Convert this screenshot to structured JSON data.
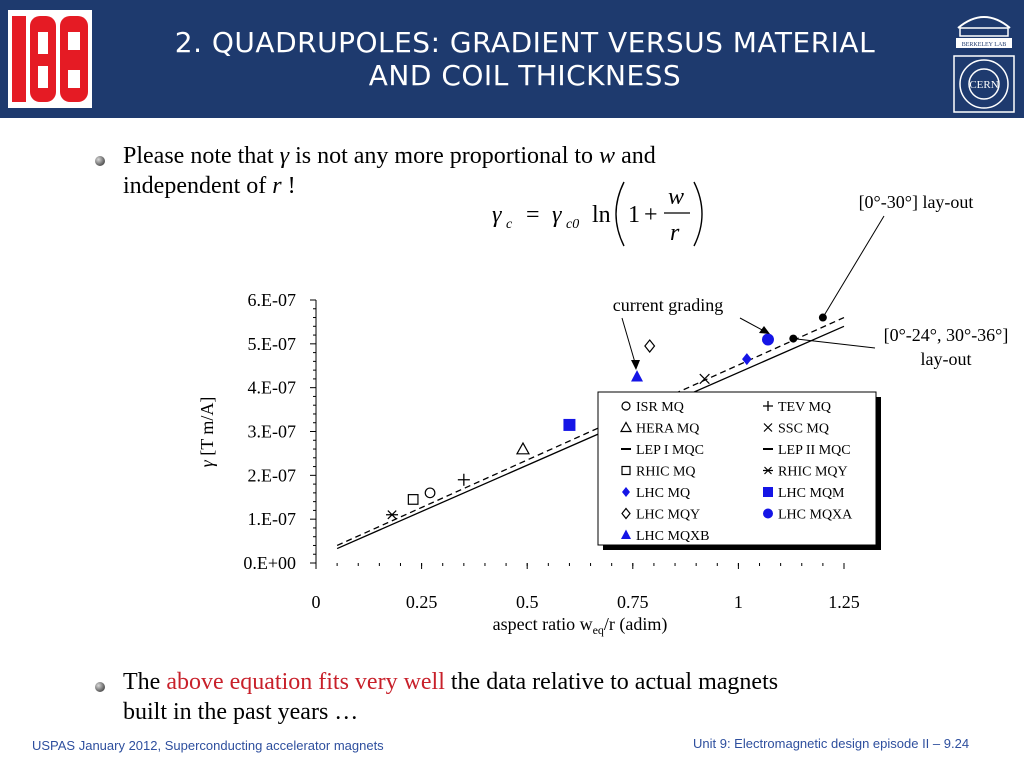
{
  "header": {
    "title_line1": "2. Quadrupoles: gradient versus material",
    "title_line2": "and coil thickness",
    "logo_left_text": "USPAS",
    "logo_right_top_text": "BERKELEY LAB",
    "logo_right_bottom_text": "CERN"
  },
  "bullets": [
    {
      "pre": "Please note that ",
      "sym1": "γ",
      "mid1": " is not any more proportional to ",
      "sym2": "w",
      "post1": " and",
      "line2": "independent of ",
      "sym3": "r",
      "post2": " !"
    },
    {
      "pre": "The ",
      "highlight": "above equation fits very well",
      "post": " the data relative to actual magnets",
      "line2": "built in the past years …"
    }
  ],
  "equation": {
    "lhs": "γ",
    "lhs_sub": "c",
    "eq": "=",
    "rhs": "γ",
    "rhs_sub": "c0",
    "ln": "ln",
    "one": "1",
    "plus": "+",
    "num": "w",
    "den": "r"
  },
  "chart_data": {
    "type": "scatter",
    "xlabel_main": "aspect ratio w",
    "xlabel_sub": "eq",
    "xlabel_tail": "/r (adim)",
    "ylabel_sym": "γ",
    "ylabel_tail": " [T m/A]",
    "xlim": [
      0,
      1.25
    ],
    "ylim": [
      0,
      6e-07
    ],
    "x_ticks": [
      "0",
      "0.25",
      "0.5",
      "0.75",
      "1",
      "1.25"
    ],
    "y_ticks": [
      "0.E+00",
      "1.E-07",
      "2.E-07",
      "3.E-07",
      "4.E-07",
      "5.E-07",
      "6.E-07"
    ],
    "series": [
      {
        "name": "ISR MQ",
        "marker": "circle-open",
        "x": [
          0.27
        ],
        "y": [
          1.6e-07
        ]
      },
      {
        "name": "TEV MQ",
        "marker": "plus",
        "x": [
          0.35
        ],
        "y": [
          1.9e-07
        ]
      },
      {
        "name": "HERA MQ",
        "marker": "triangle-open",
        "x": [
          0.49
        ],
        "y": [
          2.6e-07
        ]
      },
      {
        "name": "SSC MQ",
        "marker": "cross",
        "x": [
          0.92
        ],
        "y": [
          4.2e-07
        ]
      },
      {
        "name": "LEP I MQC",
        "marker": "dash",
        "x": [],
        "y": []
      },
      {
        "name": "LEP II MQC",
        "marker": "dash",
        "x": [],
        "y": []
      },
      {
        "name": "RHIC MQ",
        "marker": "square-open",
        "x": [
          0.23
        ],
        "y": [
          1.45e-07
        ]
      },
      {
        "name": "RHIC MQY",
        "marker": "star",
        "x": [
          0.18
        ],
        "y": [
          1.1e-07
        ]
      },
      {
        "name": "LHC MQ",
        "marker": "diamond-filled",
        "x": [
          1.02
        ],
        "y": [
          4.65e-07
        ]
      },
      {
        "name": "LHC MQM",
        "marker": "square-filled",
        "x": [
          0.6
        ],
        "y": [
          3.15e-07
        ]
      },
      {
        "name": "LHC MQY",
        "marker": "diamond-open",
        "x": [
          0.79
        ],
        "y": [
          4.95e-07
        ]
      },
      {
        "name": "LHC MQXA",
        "marker": "circle-filled",
        "x": [
          1.07
        ],
        "y": [
          5.1e-07
        ]
      },
      {
        "name": "LHC MQXB",
        "marker": "triangle-filled",
        "x": [
          0.76
        ],
        "y": [
          4.25e-07
        ]
      }
    ],
    "fit_lines": [
      {
        "style": "solid",
        "x": [
          0.05,
          1.25
        ],
        "y": [
          3.3e-08,
          5.4e-07
        ]
      },
      {
        "style": "dashed",
        "x": [
          0.05,
          1.25
        ],
        "y": [
          4e-08,
          5.6e-07
        ]
      }
    ],
    "annotations": [
      {
        "text": "current grading",
        "x": 0.74,
        "y": 5.8e-07
      },
      {
        "text": "[0°-30°] lay-out",
        "x": 1.2,
        "y": 5.6e-07
      },
      {
        "text_line1": "[0°-24°, 30°-36°]",
        "text_line2": "lay-out",
        "x": 1.13,
        "y": 5.12e-07
      }
    ]
  },
  "footer": {
    "left": "USPAS January 2012,  Superconducting accelerator magnets",
    "right": "Unit 9: Electromagnetic design episode II – 9.24"
  }
}
